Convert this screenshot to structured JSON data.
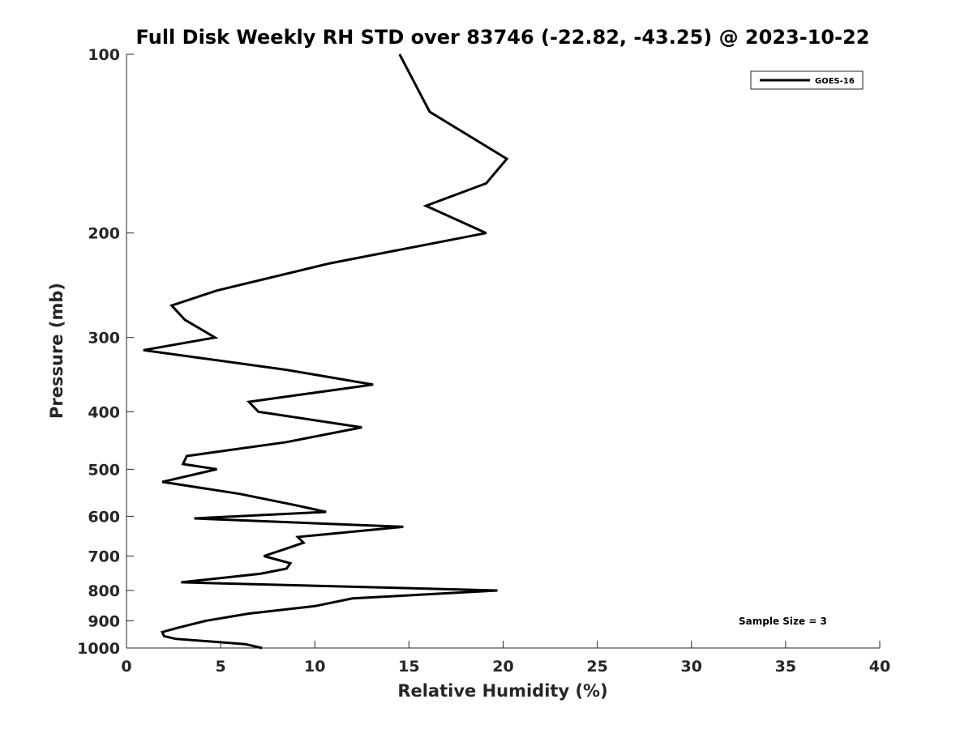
{
  "chart_data": {
    "type": "line",
    "title": "Full Disk Weekly RH STD over 83746 (-22.82, -43.25) @ 2023-10-22",
    "xlabel": "Relative Humidity (%)",
    "ylabel": "Pressure (mb)",
    "xlim": [
      0,
      40
    ],
    "ylim": [
      100,
      1000
    ],
    "y_scale": "log",
    "y_reversed": true,
    "grid": false,
    "x_ticks": [
      0,
      5,
      10,
      15,
      20,
      25,
      30,
      35,
      40
    ],
    "x_tick_labels": [
      "0",
      "5",
      "10",
      "15",
      "20",
      "25",
      "30",
      "35",
      "40"
    ],
    "y_ticks": [
      100,
      200,
      300,
      400,
      500,
      600,
      700,
      800,
      900,
      1000
    ],
    "y_tick_labels": [
      "100",
      "200",
      "300",
      "400",
      "500",
      "600",
      "700",
      "800",
      "900",
      "1000"
    ],
    "legend": {
      "position": "top-right",
      "entries": [
        "GOES-16"
      ]
    },
    "annotation": "Sample Size = 3",
    "series": [
      {
        "name": "GOES-16",
        "color": "#000000",
        "points": [
          [
            14.5,
            100
          ],
          [
            16.1,
            125
          ],
          [
            20.2,
            150
          ],
          [
            19.1,
            165
          ],
          [
            15.9,
            180
          ],
          [
            19.1,
            200
          ],
          [
            10.8,
            225
          ],
          [
            4.8,
            250
          ],
          [
            2.4,
            265
          ],
          [
            3.1,
            280
          ],
          [
            4.7,
            300
          ],
          [
            0.9,
            315
          ],
          [
            8.5,
            340
          ],
          [
            13.1,
            360
          ],
          [
            6.5,
            385
          ],
          [
            7.0,
            400
          ],
          [
            12.5,
            425
          ],
          [
            8.5,
            450
          ],
          [
            3.2,
            475
          ],
          [
            3.0,
            490
          ],
          [
            4.8,
            500
          ],
          [
            1.9,
            525
          ],
          [
            6.0,
            550
          ],
          [
            9.0,
            575
          ],
          [
            10.6,
            590
          ],
          [
            3.6,
            605
          ],
          [
            14.7,
            625
          ],
          [
            9.1,
            650
          ],
          [
            9.4,
            665
          ],
          [
            8.5,
            680
          ],
          [
            7.3,
            700
          ],
          [
            8.7,
            720
          ],
          [
            8.5,
            735
          ],
          [
            7.1,
            750
          ],
          [
            2.9,
            775
          ],
          [
            19.7,
            800
          ],
          [
            12.0,
            825
          ],
          [
            10.0,
            850
          ],
          [
            6.5,
            875
          ],
          [
            4.2,
            900
          ],
          [
            2.7,
            925
          ],
          [
            1.9,
            940
          ],
          [
            2.0,
            955
          ],
          [
            2.6,
            965
          ],
          [
            6.3,
            985
          ],
          [
            7.2,
            1000
          ]
        ]
      }
    ]
  }
}
